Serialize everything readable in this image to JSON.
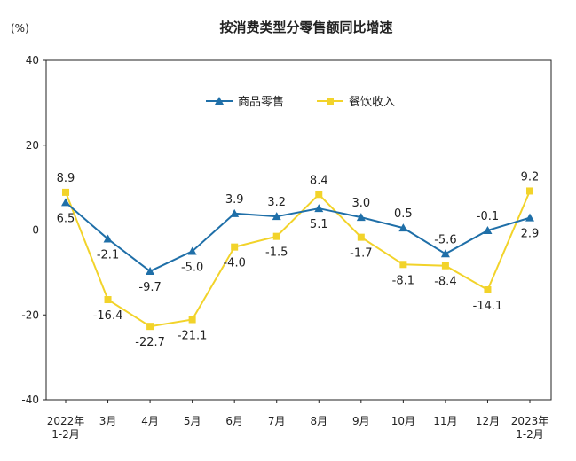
{
  "chart_data": {
    "type": "line",
    "title": "按消费类型分零售额同比增速",
    "unit_label": "(%)",
    "ylim": [
      -40,
      40
    ],
    "yticks": [
      40,
      20,
      0,
      -20,
      -40
    ],
    "categories": [
      [
        "2022年",
        "1-2月"
      ],
      [
        "3月"
      ],
      [
        "4月"
      ],
      [
        "5月"
      ],
      [
        "6月"
      ],
      [
        "7月"
      ],
      [
        "8月"
      ],
      [
        "9月"
      ],
      [
        "10月"
      ],
      [
        "11月"
      ],
      [
        "12月"
      ],
      [
        "2023年",
        "1-2月"
      ]
    ],
    "series": [
      {
        "name": "商品零售",
        "color": "#1f6fa8",
        "marker": "triangle",
        "values": [
          6.5,
          -2.1,
          -9.7,
          -5.0,
          3.9,
          3.2,
          5.1,
          3.0,
          0.5,
          -5.6,
          -0.1,
          2.9
        ],
        "labels": [
          "6.5",
          "-2.1",
          "-9.7",
          "-5.0",
          "3.9",
          "3.2",
          "5.1",
          "3.0",
          "0.5",
          "-5.6",
          "-0.1",
          "2.9"
        ],
        "label_pos": [
          "below",
          "below",
          "below",
          "below",
          "above",
          "above",
          "below",
          "above",
          "above",
          "above",
          "above",
          "below"
        ]
      },
      {
        "name": "餐饮收入",
        "color": "#f2d32a",
        "marker": "square",
        "values": [
          8.9,
          -16.4,
          -22.7,
          -21.1,
          -4.0,
          -1.5,
          8.4,
          -1.7,
          -8.1,
          -8.4,
          -14.1,
          9.2
        ],
        "labels": [
          "8.9",
          "-16.4",
          "-22.7",
          "-21.1",
          "-4.0",
          "-1.5",
          "8.4",
          "-1.7",
          "-8.1",
          "-8.4",
          "-14.1",
          "9.2"
        ],
        "label_pos": [
          "above",
          "below",
          "below",
          "below",
          "below",
          "below",
          "above",
          "below",
          "below",
          "below",
          "below",
          "above"
        ]
      }
    ],
    "legend_position": "top-center"
  }
}
